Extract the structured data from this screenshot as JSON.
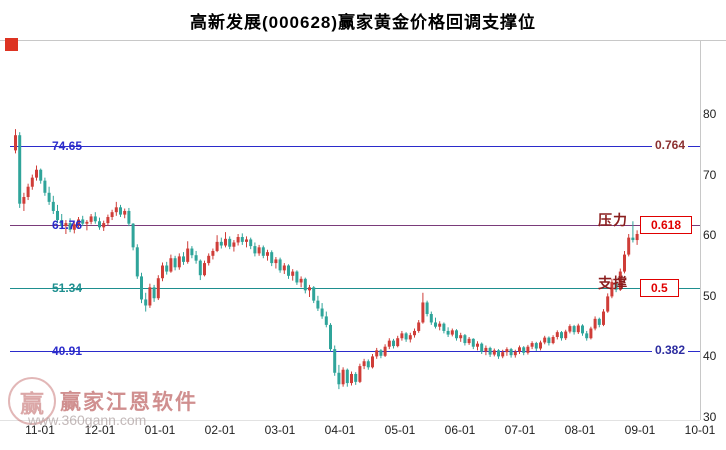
{
  "header": {
    "title": "高新发展(000628)赢家黄金价格回调支撑位"
  },
  "watermark": {
    "brand": "赢家江恩软件",
    "url": "www.360gann.com",
    "logo_text": "赢"
  },
  "colors": {
    "up": "#cf3d38",
    "down": "#2fa49a",
    "axis_text": "#222222",
    "grid": "#c8c8c8",
    "marker": "#dd3322",
    "side_label": "#8b1e1e"
  },
  "chart_data": {
    "type": "candlestick",
    "title": "高新发展(000628)赢家黄金价格回调支撑位",
    "x_axis": {
      "labels": [
        "11-01",
        "12-01",
        "01-01",
        "02-01",
        "03-01",
        "04-01",
        "05-01",
        "06-01",
        "07-01",
        "08-01",
        "09-01",
        "10-01"
      ]
    },
    "y_axis": {
      "min": 30,
      "max": 80,
      "ticks": [
        80,
        70,
        60,
        50,
        40,
        30
      ]
    },
    "fib_levels": [
      {
        "ratio": "0.764",
        "price": "74.65",
        "line_color": "#2b2bcb",
        "price_color": "#2b2bcb",
        "ratio_color": "#8b3030",
        "boxed": false
      },
      {
        "ratio": "0.618",
        "price": "61.76",
        "line_color": "#7a3b7a",
        "price_color": "#2b2bcb",
        "ratio_color": "#e00000",
        "boxed": true,
        "side_label": "压力"
      },
      {
        "ratio": "0.5",
        "price": "51.34",
        "line_color": "#1e8f8f",
        "price_color": "#1e8f8f",
        "ratio_color": "#e00000",
        "boxed": true,
        "side_label": "支撑"
      },
      {
        "ratio": "0.382",
        "price": "40.91",
        "line_color": "#2b2bcb",
        "price_color": "#2b2bcb",
        "ratio_color": "#2d2da0",
        "boxed": false
      }
    ],
    "candles": [
      [
        74,
        77.5,
        73.5,
        76.5
      ],
      [
        76.5,
        77,
        64.5,
        65.2
      ],
      [
        65.2,
        67,
        64,
        66.3
      ],
      [
        66.3,
        68.5,
        65.8,
        68
      ],
      [
        68,
        70,
        67.5,
        69.5
      ],
      [
        69.5,
        71.5,
        69,
        70.8
      ],
      [
        70.8,
        71,
        68.5,
        69
      ],
      [
        69,
        69.5,
        66.5,
        67
      ],
      [
        67,
        68,
        65,
        65.5
      ],
      [
        65.5,
        66.5,
        63.5,
        64
      ],
      [
        64,
        65,
        62,
        62.5
      ],
      [
        62.5,
        63.5,
        61,
        61.5
      ],
      [
        61.5,
        62.5,
        60.2,
        62
      ],
      [
        62,
        62.8,
        60.5,
        60.9
      ],
      [
        60.9,
        62.2,
        60.3,
        61.8
      ],
      [
        61.8,
        63,
        61.2,
        62.6
      ],
      [
        62.6,
        63.2,
        61.5,
        61.9
      ],
      [
        61.9,
        62.5,
        60.8,
        62.2
      ],
      [
        62.2,
        63.5,
        61.8,
        63.1
      ],
      [
        63.1,
        63.8,
        61.9,
        62.3
      ],
      [
        62.3,
        62.9,
        60.9,
        61.3
      ],
      [
        61.3,
        62.4,
        60.7,
        62
      ],
      [
        62,
        63.4,
        61.6,
        63
      ],
      [
        63,
        64.2,
        62.5,
        63.8
      ],
      [
        63.8,
        65.5,
        63.2,
        64.6
      ],
      [
        64.6,
        65,
        63,
        63.4
      ],
      [
        63.4,
        64.4,
        62.8,
        64
      ],
      [
        64,
        64.5,
        61.5,
        61.9
      ],
      [
        61.9,
        62,
        57.5,
        58
      ],
      [
        58,
        58.5,
        52.8,
        53.2
      ],
      [
        53.2,
        53.8,
        48.8,
        49.4
      ],
      [
        49.4,
        50.5,
        47.4,
        48.4
      ],
      [
        48.4,
        52,
        48,
        51.4
      ],
      [
        51.4,
        51.8,
        49,
        49.6
      ],
      [
        49.6,
        53.4,
        49.3,
        52.9
      ],
      [
        52.9,
        55.5,
        52.4,
        55
      ],
      [
        55,
        55.6,
        53.5,
        54
      ],
      [
        54,
        56.8,
        53.8,
        56.2
      ],
      [
        56.2,
        56.6,
        54.2,
        54.7
      ],
      [
        54.7,
        57,
        54.3,
        56.5
      ],
      [
        56.5,
        57.2,
        55.1,
        55.6
      ],
      [
        55.6,
        59,
        55.3,
        57.8
      ],
      [
        57.8,
        58.2,
        56.2,
        56.7
      ],
      [
        56.7,
        57.4,
        55.3,
        55.8
      ],
      [
        55.8,
        56,
        52.6,
        53.4
      ],
      [
        53.4,
        55.8,
        53.2,
        55.4
      ],
      [
        55.4,
        57,
        55,
        56.6
      ],
      [
        56.6,
        57.8,
        56,
        57.4
      ],
      [
        57.4,
        60,
        57.2,
        58.9
      ],
      [
        58.9,
        59.6,
        57.8,
        58.3
      ],
      [
        58.3,
        60.5,
        58,
        59.4
      ],
      [
        59.4,
        59.8,
        57.7,
        58.1
      ],
      [
        58.1,
        59.2,
        57.3,
        58.8
      ],
      [
        58.8,
        60.2,
        58.3,
        59.7
      ],
      [
        59.7,
        60.3,
        58.4,
        58.9
      ],
      [
        58.9,
        59.8,
        58,
        59.3
      ],
      [
        59.3,
        59.6,
        57.7,
        58.2
      ],
      [
        58.2,
        58.8,
        56.5,
        57
      ],
      [
        57,
        58.4,
        56.6,
        58
      ],
      [
        58,
        58.3,
        56.2,
        56.6
      ],
      [
        56.6,
        57.6,
        55.8,
        57.2
      ],
      [
        57.2,
        57.5,
        54.9,
        55.4
      ],
      [
        55.4,
        56.4,
        54.5,
        56
      ],
      [
        56,
        56.3,
        53.8,
        54.2
      ],
      [
        54.2,
        55.4,
        53.6,
        55
      ],
      [
        55,
        55.2,
        52.8,
        53.3
      ],
      [
        53.3,
        54.4,
        52.5,
        54
      ],
      [
        54,
        54.2,
        51.8,
        52.2
      ],
      [
        52.2,
        53.2,
        51.4,
        52.8
      ],
      [
        52.8,
        53,
        50.4,
        50.9
      ],
      [
        50.9,
        51.8,
        49.8,
        51.4
      ],
      [
        51.4,
        51.6,
        48.8,
        49.2
      ],
      [
        49.2,
        50,
        47.5,
        47.9
      ],
      [
        47.9,
        48.8,
        46.2,
        46.6
      ],
      [
        46.6,
        47.4,
        44.8,
        45.2
      ],
      [
        45.2,
        45.5,
        40.8,
        41.2
      ],
      [
        41.2,
        41.8,
        36.8,
        37.3
      ],
      [
        37.3,
        38.6,
        34.6,
        35.4
      ],
      [
        35.4,
        38.2,
        35,
        37.8
      ],
      [
        37.8,
        38,
        35,
        35.6
      ],
      [
        35.6,
        37.5,
        35.2,
        37.1
      ],
      [
        37.1,
        37.4,
        35.3,
        35.8
      ],
      [
        35.8,
        38.8,
        35.6,
        38.4
      ],
      [
        38.4,
        39.6,
        37.9,
        39.2
      ],
      [
        39.2,
        39.5,
        37.8,
        38.2
      ],
      [
        38.2,
        40.4,
        38,
        40
      ],
      [
        40,
        41.4,
        39.6,
        41
      ],
      [
        41,
        41.2,
        39.7,
        40.1
      ],
      [
        40.1,
        42,
        39.9,
        41.6
      ],
      [
        41.6,
        43,
        41.2,
        42.6
      ],
      [
        42.6,
        42.9,
        41.3,
        41.7
      ],
      [
        41.7,
        43.4,
        41.5,
        43
      ],
      [
        43,
        44.2,
        42.6,
        43.8
      ],
      [
        43.8,
        44,
        42.4,
        42.8
      ],
      [
        42.8,
        43.9,
        42.3,
        43.5
      ],
      [
        43.5,
        44.6,
        43.1,
        44.2
      ],
      [
        44.2,
        46,
        43.9,
        45.6
      ],
      [
        45.6,
        50.5,
        45.4,
        48.9
      ],
      [
        48.9,
        49.2,
        46.6,
        47
      ],
      [
        47,
        47.4,
        45.2,
        45.6
      ],
      [
        45.6,
        46.4,
        44.6,
        44.9
      ],
      [
        44.9,
        45.8,
        44.3,
        45.4
      ],
      [
        45.4,
        45.6,
        43.8,
        44.2
      ],
      [
        44.2,
        44.8,
        43.2,
        43.6
      ],
      [
        43.6,
        44.6,
        43.3,
        44.3
      ],
      [
        44.3,
        44.5,
        42.6,
        43
      ],
      [
        43,
        43.9,
        42.4,
        43.5
      ],
      [
        43.5,
        43.7,
        41.8,
        42.2
      ],
      [
        42.2,
        43.2,
        41.9,
        42.9
      ],
      [
        42.9,
        43,
        41.2,
        41.6
      ],
      [
        41.6,
        42.5,
        41,
        42.1
      ],
      [
        42.1,
        42.3,
        40.4,
        40.8
      ],
      [
        40.8,
        41.8,
        40.2,
        41.4
      ],
      [
        41.4,
        41.6,
        39.9,
        40.3
      ],
      [
        40.3,
        41.3,
        40,
        41
      ],
      [
        41,
        41.2,
        39.6,
        40
      ],
      [
        40,
        41.1,
        39.7,
        40.7
      ],
      [
        40.7,
        41.5,
        40.1,
        41.2
      ],
      [
        41.2,
        41.4,
        39.8,
        40.2
      ],
      [
        40.2,
        41.1,
        39.8,
        40.8
      ],
      [
        40.8,
        41.8,
        40.4,
        41.5
      ],
      [
        41.5,
        41.7,
        40.2,
        40.6
      ],
      [
        40.6,
        41.9,
        40.3,
        41.6
      ],
      [
        41.6,
        42.5,
        41.2,
        42.2
      ],
      [
        42.2,
        42.4,
        40.9,
        41.3
      ],
      [
        41.3,
        42.6,
        41,
        42.3
      ],
      [
        42.3,
        43.4,
        42,
        43.1
      ],
      [
        43.1,
        43.3,
        41.8,
        42.2
      ],
      [
        42.2,
        43.5,
        42,
        43.2
      ],
      [
        43.2,
        44.3,
        42.8,
        44
      ],
      [
        44,
        44.2,
        42.6,
        43
      ],
      [
        43,
        44.4,
        42.7,
        44.1
      ],
      [
        44.1,
        45.3,
        43.8,
        45
      ],
      [
        45,
        45.2,
        43.6,
        44
      ],
      [
        44,
        45.4,
        43.7,
        45.1
      ],
      [
        45.1,
        45.3,
        43.4,
        43.8
      ],
      [
        43.8,
        44.2,
        42.6,
        43
      ],
      [
        43,
        44.9,
        42.8,
        44.6
      ],
      [
        44.6,
        46.6,
        44.3,
        46.2
      ],
      [
        46.2,
        46.4,
        44.8,
        45.2
      ],
      [
        45.2,
        47.8,
        45,
        47.4
      ],
      [
        47.4,
        50.4,
        47.2,
        49.9
      ],
      [
        49.9,
        52.8,
        49.6,
        52.3
      ],
      [
        52.3,
        52.6,
        50.6,
        51
      ],
      [
        51,
        54.5,
        50.8,
        54
      ],
      [
        54,
        57.4,
        53.7,
        56.8
      ],
      [
        56.8,
        60.2,
        56.5,
        59.6
      ],
      [
        59.6,
        62.3,
        58.8,
        59.2
      ],
      [
        59.2,
        60.8,
        58.4,
        60.2
      ]
    ]
  }
}
